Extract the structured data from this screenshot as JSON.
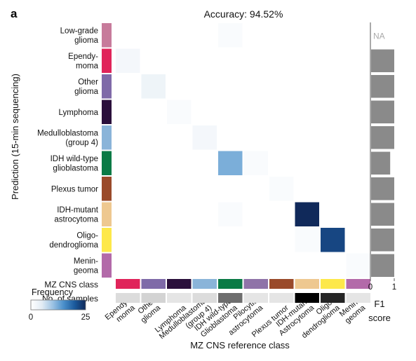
{
  "panel_letter": "a",
  "chart_data": {
    "type": "heatmap",
    "title": "Accuracy: 94.52%",
    "xlabel": "MZ CNS reference class",
    "ylabel": "Prediction (15-min sequencing)",
    "row_labels": [
      [
        "Low-grade",
        "glioma"
      ],
      [
        "Ependy-",
        "moma"
      ],
      [
        "Other",
        "glioma"
      ],
      [
        "Lymphoma"
      ],
      [
        "Medulloblastoma",
        "(group 4)"
      ],
      [
        "IDH wild-type",
        "glioblastoma"
      ],
      [
        "Plexus tumor"
      ],
      [
        "IDH-mutant",
        "astrocytoma"
      ],
      [
        "Oligo-",
        "dendroglioma"
      ],
      [
        "Menin-",
        "geoma"
      ]
    ],
    "col_labels": [
      [
        "Ependy-",
        "moma"
      ],
      [
        "Other",
        "glioma"
      ],
      [
        "Lymphoma"
      ],
      [
        "Medulloblastoma",
        "(group 4)"
      ],
      [
        "IDH wild-type",
        "Glioblastoma"
      ],
      [
        "Pilocytic",
        "astrocytoma"
      ],
      [
        "Plexus tumor"
      ],
      [
        "IDH-mutant",
        "Astrocytoma"
      ],
      [
        "Oligo-",
        "dendroglioma"
      ],
      [
        "Menin-",
        "geoma"
      ]
    ],
    "row_class_colors": [
      "#c77b9b",
      "#e0245a",
      "#7f6aa8",
      "#2a0f3b",
      "#8ab4d9",
      "#0a7a45",
      "#9a4a2a",
      "#eec890",
      "#fde84a",
      "#b36aa9"
    ],
    "col_class_colors": [
      "#e0245a",
      "#7f6aa8",
      "#2a0f3b",
      "#8ab4d9",
      "#0a7a45",
      "#8f73a8",
      "#9a4a2a",
      "#eec890",
      "#fde84a",
      "#b36aa9"
    ],
    "frequency_matrix": [
      [
        0,
        0,
        0,
        0,
        1,
        0,
        0,
        0,
        0,
        0
      ],
      [
        2,
        0,
        0,
        0,
        0,
        0,
        0,
        0,
        0,
        0
      ],
      [
        0,
        3,
        0,
        0,
        0,
        0,
        0,
        0,
        0,
        0
      ],
      [
        0,
        0,
        1,
        0,
        0,
        0,
        0,
        0,
        0,
        0
      ],
      [
        0,
        0,
        0,
        2,
        0,
        0,
        0,
        0,
        0,
        0
      ],
      [
        0,
        0,
        0,
        0,
        12,
        1,
        0,
        0,
        0,
        0
      ],
      [
        0,
        0,
        0,
        0,
        0,
        0,
        1,
        0,
        0,
        0
      ],
      [
        0,
        0,
        0,
        0,
        1,
        0,
        0,
        25,
        0,
        0
      ],
      [
        0,
        0,
        0,
        0,
        0,
        0,
        0,
        1,
        22,
        0
      ],
      [
        0,
        0,
        0,
        0,
        0,
        0,
        0,
        0,
        0,
        1
      ]
    ],
    "mz_cns_class_label": "MZ CNS class",
    "samples_label": "No. of samples",
    "n_samples": [
      2,
      3,
      1,
      2,
      14,
      1,
      1,
      26,
      22,
      1
    ],
    "f1_label": [
      "F1",
      "score"
    ],
    "f1_na": "NA",
    "f1_scores": [
      null,
      0.97,
      0.97,
      0.97,
      0.97,
      0.8,
      0.97,
      0.97,
      0.97,
      0.97
    ],
    "f1_ticks": [
      "0",
      "1"
    ],
    "legend": {
      "title": "Frequency",
      "min_label": "0",
      "max_label": "25",
      "min": 0,
      "max": 25
    },
    "colormap": [
      "#ffffff",
      "#e3ecf4",
      "#9cc2e3",
      "#4a8fca",
      "#1b5a9c",
      "#10295a"
    ],
    "grid": false,
    "legend_position": "bottom-left"
  }
}
